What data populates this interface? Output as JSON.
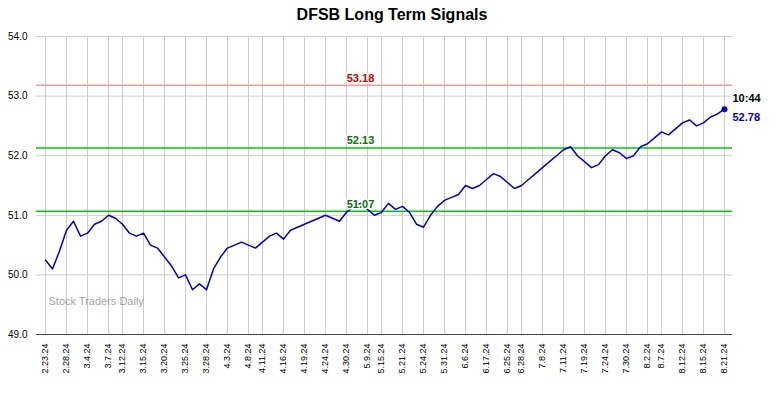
{
  "chart_data": {
    "type": "line",
    "title": "DFSB Long Term Signals",
    "categories": [
      "2.23.24",
      null,
      null,
      "2.28.24",
      null,
      null,
      "3.4.24",
      null,
      null,
      "3.7.24",
      null,
      "3.12.24",
      null,
      null,
      "3.15.24",
      null,
      null,
      "3.20.24",
      null,
      null,
      "3.25.24",
      null,
      null,
      "3.28.24",
      null,
      null,
      "4.3.24",
      null,
      null,
      "4.8.24",
      null,
      "4.11.24",
      null,
      null,
      "4.16.24",
      null,
      null,
      "4.19.24",
      null,
      null,
      "4.24.24",
      null,
      null,
      "4.30.24",
      null,
      null,
      "5.9.24",
      null,
      "5.15.24",
      null,
      null,
      "5.21.24",
      null,
      null,
      "5.24.24",
      null,
      null,
      "5.31.24",
      null,
      null,
      "6.6.24",
      null,
      null,
      "6.17.24",
      null,
      null,
      "6.25.24",
      null,
      "6.28.24",
      null,
      null,
      "7.8.24",
      null,
      null,
      "7.11.24",
      null,
      null,
      "7.19.24",
      null,
      null,
      "7.24.24",
      null,
      null,
      "7.30.24",
      null,
      null,
      "8.2.24",
      null,
      "8.7.24",
      null,
      null,
      "8.12.24",
      null,
      null,
      "8.15.24",
      null,
      null,
      "8.21.24"
    ],
    "values": [
      50.25,
      50.1,
      50.4,
      50.75,
      50.9,
      50.65,
      50.7,
      50.85,
      50.9,
      51.0,
      50.95,
      50.85,
      50.7,
      50.65,
      50.7,
      50.5,
      50.45,
      50.3,
      50.15,
      49.95,
      50.0,
      49.75,
      49.85,
      49.75,
      50.1,
      50.3,
      50.45,
      50.5,
      50.55,
      50.5,
      50.45,
      50.55,
      50.65,
      50.7,
      50.6,
      50.75,
      50.8,
      50.85,
      50.9,
      50.95,
      51.0,
      50.95,
      50.9,
      51.05,
      51.15,
      51.2,
      51.1,
      51.0,
      51.05,
      51.2,
      51.1,
      51.15,
      51.05,
      50.85,
      50.8,
      51.0,
      51.15,
      51.25,
      51.3,
      51.35,
      51.5,
      51.45,
      51.5,
      51.6,
      51.7,
      51.65,
      51.55,
      51.45,
      51.5,
      51.6,
      51.7,
      51.8,
      51.9,
      52.0,
      52.1,
      52.15,
      52.0,
      51.9,
      51.8,
      51.85,
      52.0,
      52.1,
      52.05,
      51.95,
      52.0,
      52.15,
      52.2,
      52.3,
      52.4,
      52.35,
      52.45,
      52.55,
      52.6,
      52.5,
      52.55,
      52.65,
      52.7,
      52.78
    ],
    "color": "#0000cc",
    "reference_lines": [
      {
        "value": 53.18,
        "color": "#ff9999",
        "label_color": "#cc0000"
      },
      {
        "value": 52.13,
        "color": "#00cc00",
        "label_color": "#007700"
      },
      {
        "value": 51.07,
        "color": "#00cc00",
        "label_color": "#007700"
      }
    ],
    "last_point_labels": [
      "10:44",
      "52.78"
    ],
    "watermark": "Stock Traders Daily",
    "ylim": [
      49,
      54
    ],
    "yticks": [
      49,
      50,
      51,
      52,
      53,
      54
    ],
    "grid": true
  }
}
